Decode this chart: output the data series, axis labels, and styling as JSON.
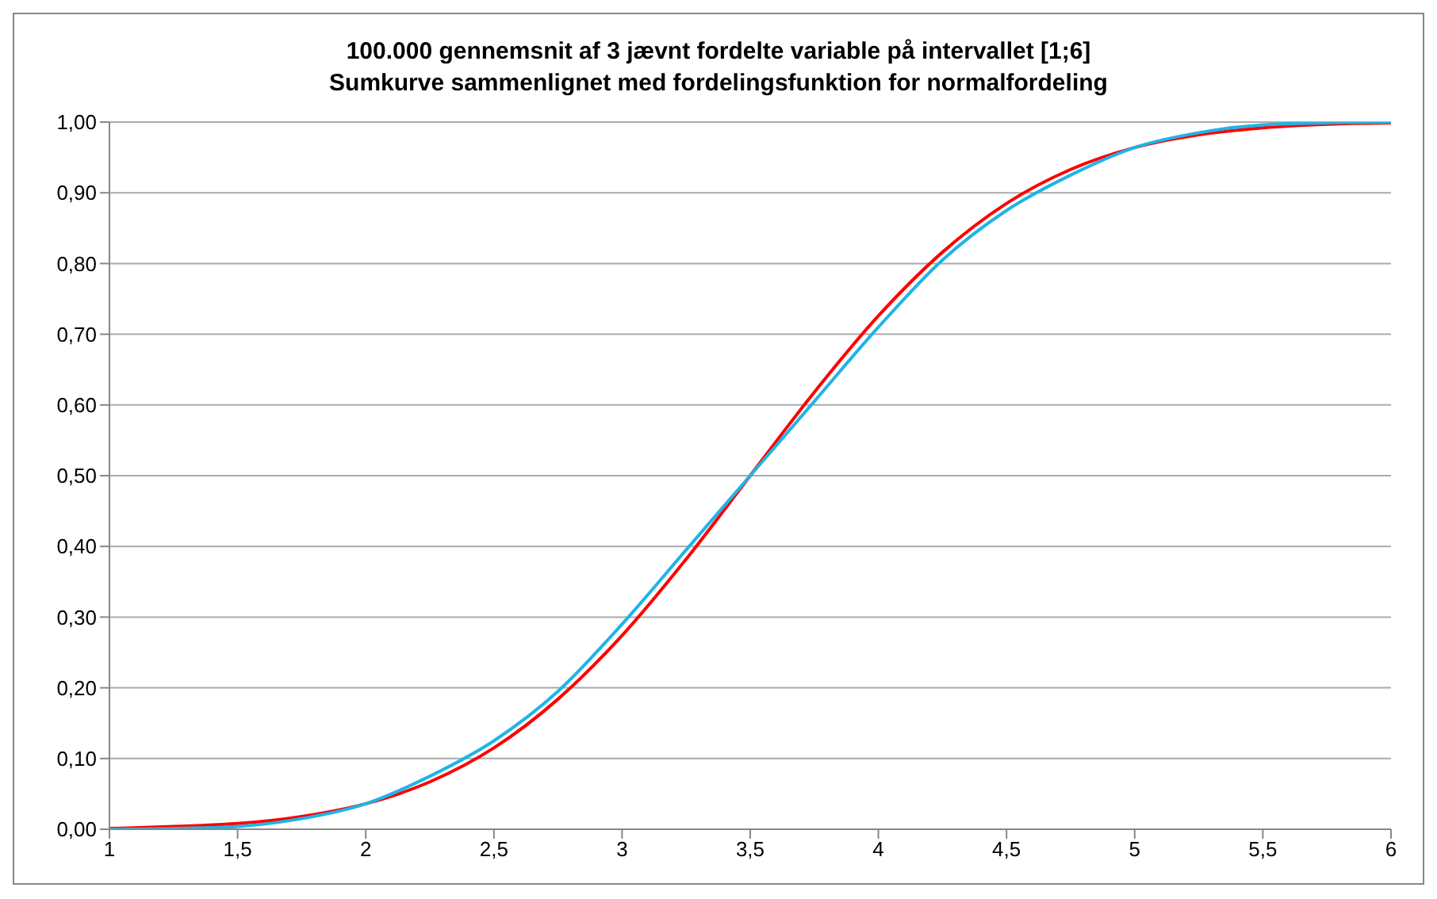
{
  "chart_data": {
    "type": "line",
    "title": "100.000 gennemsnit af  3  jævnt fordelte variable på intervallet  [1;6]",
    "subtitle": "Sumkurve sammenlignet med fordelingsfunktion for normalfordeling",
    "x": [
      1,
      1.25,
      1.5,
      1.75,
      2,
      2.25,
      2.5,
      2.75,
      3,
      3.25,
      3.5,
      3.75,
      4,
      4.25,
      4.5,
      4.75,
      5,
      5.25,
      5.5,
      5.75,
      6
    ],
    "series": [
      {
        "color": "#ff0000",
        "values": [
          0.001,
          0.004,
          0.008,
          0.018,
          0.036,
          0.067,
          0.115,
          0.184,
          0.274,
          0.382,
          0.5,
          0.618,
          0.726,
          0.816,
          0.885,
          0.933,
          0.964,
          0.982,
          0.992,
          0.997,
          0.999
        ]
      },
      {
        "color": "#1fb4e6",
        "values": [
          0,
          0.001,
          0.004,
          0.015,
          0.036,
          0.075,
          0.125,
          0.195,
          0.29,
          0.395,
          0.5,
          0.605,
          0.71,
          0.805,
          0.875,
          0.925,
          0.964,
          0.985,
          0.996,
          0.999,
          1
        ]
      }
    ],
    "xlim": [
      1,
      6
    ],
    "xticks": [
      1,
      {
        "value": 1.5,
        "label": "1,5"
      },
      2,
      {
        "value": 2.5,
        "label": "2,5"
      },
      3,
      {
        "value": 3.5,
        "label": "3,5"
      },
      4,
      {
        "value": 4.5,
        "label": "4,5"
      },
      5,
      {
        "value": 5.5,
        "label": "5,5"
      },
      6
    ],
    "ylim": [
      0,
      1
    ],
    "yticks": [
      {
        "value": 0,
        "label": "0,00"
      },
      {
        "value": 0.1,
        "label": "0,10"
      },
      {
        "value": 0.2,
        "label": "0,20"
      },
      {
        "value": 0.3,
        "label": "0,30"
      },
      {
        "value": 0.4,
        "label": "0,40"
      },
      {
        "value": 0.5,
        "label": "0,50"
      },
      {
        "value": 0.6,
        "label": "0,60"
      },
      {
        "value": 0.7,
        "label": "0,70"
      },
      {
        "value": 0.8,
        "label": "0,80"
      },
      {
        "value": 0.9,
        "label": "0,90"
      },
      {
        "value": 1,
        "label": "1,00"
      }
    ],
    "grid": "y",
    "legend": false,
    "marker": "none",
    "line_style": "solid"
  }
}
